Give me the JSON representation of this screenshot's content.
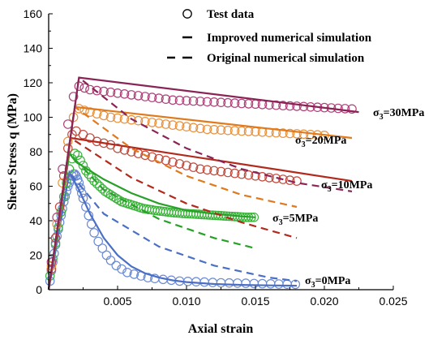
{
  "chart_data": {
    "type": "line",
    "xlabel": "Axial strain",
    "ylabel": "Sheer Stress q (MPa)",
    "xlim": [
      0,
      0.025
    ],
    "ylim": [
      0,
      160
    ],
    "x_ticks": [
      "0.005",
      "0.010",
      "0.015",
      "0.020",
      "0.025"
    ],
    "y_ticks": [
      "0",
      "20",
      "40",
      "60",
      "80",
      "100",
      "120",
      "140",
      "160"
    ],
    "grid": false,
    "legend_position": "top-right",
    "legend": [
      {
        "label": "Test data",
        "kind": "marker"
      },
      {
        "label": "Improved numerical simulation",
        "kind": "solid"
      },
      {
        "label": "Original numerical simulation",
        "kind": "dashed"
      }
    ],
    "series": [
      {
        "annotation": "σ3=0MPa",
        "color": "#4a6fc4",
        "test_color": "#6b8ad4",
        "test_data": {
          "x": [
            0.0001,
            0.0002,
            0.0003,
            0.0004,
            0.0005,
            0.0006,
            0.0007,
            0.0008,
            0.0009,
            0.001,
            0.0011,
            0.0012,
            0.0013,
            0.0014,
            0.0015,
            0.0016,
            0.0017,
            0.0018,
            0.0019,
            0.002,
            0.0021,
            0.0022,
            0.0023,
            0.0024,
            0.0025,
            0.0027,
            0.0029,
            0.0031,
            0.0033,
            0.0036,
            0.0039,
            0.0042,
            0.0045,
            0.0049,
            0.0053,
            0.0057,
            0.0062,
            0.0067,
            0.0072,
            0.0077,
            0.0083,
            0.0089,
            0.0095,
            0.0101,
            0.0107,
            0.0113,
            0.0119,
            0.0125,
            0.0131,
            0.0137,
            0.0143,
            0.0149,
            0.0155,
            0.0161,
            0.0167,
            0.0173,
            0.0179
          ],
          "y": [
            5,
            11,
            16,
            21,
            26,
            31,
            35,
            39,
            43,
            47,
            51,
            54,
            57,
            60,
            62,
            64,
            66,
            67,
            67,
            66,
            64,
            62,
            59,
            56,
            53,
            48,
            43,
            38,
            33,
            28,
            24,
            20,
            17,
            14,
            12,
            10,
            9,
            8,
            7,
            6.5,
            6,
            5.5,
            5,
            4.8,
            4.6,
            4.4,
            4.2,
            4,
            3.9,
            3.8,
            3.7,
            3.6,
            3.5,
            3.4,
            3.3,
            3.2,
            3.1
          ]
        },
        "improved": {
          "x": [
            0,
            0.0015,
            0.0022,
            0.003,
            0.004,
            0.005,
            0.006,
            0.007,
            0.008,
            0.009,
            0.01,
            0.012,
            0.014,
            0.016,
            0.018
          ],
          "y": [
            0,
            68,
            58,
            44,
            30,
            20,
            13.5,
            9.5,
            7,
            5.4,
            4.4,
            3.3,
            2.8,
            2.5,
            2.3
          ]
        },
        "original": {
          "x": [
            0,
            0.0015,
            0.004,
            0.008,
            0.012,
            0.016,
            0.018
          ],
          "y": [
            0,
            68,
            44,
            25,
            14,
            7,
            5
          ]
        }
      },
      {
        "annotation": "σ3=5MPa",
        "color": "#27a127",
        "test_color": "#3cb43c",
        "test_data": {
          "x": [
            0.0001,
            0.0003,
            0.0005,
            0.0007,
            0.0009,
            0.0011,
            0.0013,
            0.0015,
            0.0017,
            0.0019,
            0.0021,
            0.0023,
            0.0025,
            0.0027,
            0.0029,
            0.0031,
            0.0033,
            0.0035,
            0.0037,
            0.0039,
            0.0041,
            0.0043,
            0.0045,
            0.0047,
            0.0049,
            0.0051,
            0.0053,
            0.0055,
            0.0057,
            0.0059,
            0.0061,
            0.0063,
            0.0065,
            0.0067,
            0.0069,
            0.0071,
            0.0073,
            0.0075,
            0.0077,
            0.0079,
            0.0081,
            0.0083,
            0.0085,
            0.0087,
            0.0089,
            0.0091,
            0.0093,
            0.0095,
            0.0097,
            0.0099,
            0.0101,
            0.0103,
            0.0105,
            0.0107,
            0.0109,
            0.0111,
            0.0113,
            0.0115,
            0.0117,
            0.0119,
            0.0121,
            0.0123,
            0.0125,
            0.0127,
            0.0129,
            0.0131,
            0.0133,
            0.0135,
            0.0137,
            0.0139,
            0.0141,
            0.0143,
            0.0145,
            0.0147,
            0.0149
          ],
          "y": [
            8,
            18,
            27,
            36,
            45,
            54,
            62,
            70,
            76,
            79,
            78,
            75,
            72,
            69,
            67,
            65,
            63,
            61.5,
            60,
            58.5,
            57,
            56,
            55,
            54,
            53,
            52,
            51,
            50.5,
            50,
            49.5,
            49,
            48.5,
            48,
            47.5,
            47,
            46.8,
            46.5,
            46.3,
            46,
            45.8,
            45.6,
            45.4,
            45.2,
            45,
            44.8,
            44.6,
            44.5,
            44.4,
            44.3,
            44.2,
            44.1,
            44,
            43.9,
            43.8,
            43.7,
            43.6,
            43.5,
            43.4,
            43.3,
            43.2,
            43.1,
            43,
            42.9,
            42.8,
            42.7,
            42.6,
            42.5,
            42.4,
            42.3,
            42.2,
            42.1,
            42,
            42,
            42,
            42
          ]
        },
        "improved": {
          "x": [
            0,
            0.0015,
            0.002,
            0.004,
            0.006,
            0.008,
            0.01,
            0.012,
            0.014,
            0.015
          ],
          "y": [
            0,
            79,
            74,
            64,
            56,
            50,
            46,
            44,
            42.5,
            42
          ]
        },
        "original": {
          "x": [
            0,
            0.0015,
            0.004,
            0.008,
            0.012,
            0.015
          ],
          "y": [
            0,
            79,
            58,
            41,
            30,
            24
          ]
        }
      },
      {
        "annotation": "σ3=10MPa",
        "color": "#b22a1c",
        "test_color": "#c04a3c",
        "test_data": {
          "x": [
            0.0002,
            0.0005,
            0.0008,
            0.0011,
            0.0014,
            0.0017,
            0.002,
            0.0025,
            0.003,
            0.0035,
            0.004,
            0.0045,
            0.005,
            0.0055,
            0.006,
            0.0065,
            0.007,
            0.0075,
            0.008,
            0.0085,
            0.009,
            0.0095,
            0.01,
            0.0105,
            0.011,
            0.0115,
            0.012,
            0.0125,
            0.013,
            0.0135,
            0.014,
            0.0145,
            0.015,
            0.0155,
            0.016,
            0.0165,
            0.017,
            0.0175,
            0.018
          ],
          "y": [
            12,
            30,
            48,
            66,
            82,
            90,
            92,
            90,
            88,
            86,
            85,
            84,
            82,
            81,
            80,
            79,
            78,
            77,
            76,
            75,
            74,
            73,
            72,
            71,
            70,
            69.5,
            69,
            68.5,
            68,
            67.5,
            67,
            66.5,
            66,
            65.5,
            65,
            64.5,
            64,
            63.5,
            63
          ]
        },
        "improved": {
          "x": [
            0,
            0.0016,
            0.022
          ],
          "y": [
            0,
            88,
            63
          ]
        },
        "original": {
          "x": [
            0,
            0.0016,
            0.006,
            0.01,
            0.014,
            0.018
          ],
          "y": [
            0,
            88,
            65,
            50,
            39,
            30
          ]
        }
      },
      {
        "annotation": "σ3=20MPa",
        "color": "#e07a1c",
        "test_color": "#e8923e",
        "test_data": {
          "x": [
            0.0002,
            0.0006,
            0.001,
            0.0014,
            0.0018,
            0.0022,
            0.0026,
            0.003,
            0.0035,
            0.004,
            0.0045,
            0.005,
            0.0055,
            0.006,
            0.0065,
            0.007,
            0.0075,
            0.008,
            0.0085,
            0.009,
            0.0095,
            0.01,
            0.0105,
            0.011,
            0.0115,
            0.012,
            0.0125,
            0.013,
            0.0135,
            0.014,
            0.0145,
            0.015,
            0.0155,
            0.016,
            0.0165,
            0.017,
            0.0175,
            0.018,
            0.0185,
            0.019,
            0.0195,
            0.02
          ],
          "y": [
            14,
            38,
            62,
            86,
            100,
            105,
            104,
            103,
            102,
            101,
            100,
            99.5,
            99,
            98.5,
            98,
            97.5,
            97,
            96.5,
            96,
            95.5,
            95,
            94.5,
            94,
            93.5,
            93,
            92.8,
            92.6,
            92.4,
            92.2,
            92,
            91.8,
            91.6,
            91.4,
            91.2,
            91,
            90.8,
            90.6,
            90.4,
            90.2,
            90,
            89.8,
            89.5
          ]
        },
        "improved": {
          "x": [
            0,
            0.0019,
            0.022
          ],
          "y": [
            0,
            106,
            88
          ]
        },
        "original": {
          "x": [
            0,
            0.0019,
            0.006,
            0.01,
            0.014,
            0.018
          ],
          "y": [
            0,
            106,
            82,
            66,
            55,
            48
          ]
        }
      },
      {
        "annotation": "σ3=30MPa",
        "color": "#8b2456",
        "test_color": "#b0407a",
        "test_data": {
          "x": [
            0.0002,
            0.0006,
            0.001,
            0.0014,
            0.0018,
            0.0022,
            0.0026,
            0.003,
            0.0035,
            0.004,
            0.0045,
            0.005,
            0.0055,
            0.006,
            0.0065,
            0.007,
            0.0075,
            0.008,
            0.0085,
            0.009,
            0.0095,
            0.01,
            0.0105,
            0.011,
            0.0115,
            0.012,
            0.0125,
            0.013,
            0.0135,
            0.014,
            0.0145,
            0.015,
            0.0155,
            0.016,
            0.0165,
            0.017,
            0.0175,
            0.018,
            0.0185,
            0.019,
            0.0195,
            0.02,
            0.0205,
            0.021,
            0.0215,
            0.022
          ],
          "y": [
            16,
            42,
            70,
            96,
            112,
            118,
            117,
            116,
            115.5,
            115,
            114.5,
            114,
            113.5,
            113,
            112.5,
            112,
            111.5,
            111,
            110.5,
            110,
            109.8,
            109.6,
            109.4,
            109.2,
            109,
            108.8,
            108.6,
            108.4,
            108.2,
            108,
            107.8,
            107.6,
            107.4,
            107.2,
            107,
            106.8,
            106.6,
            106.4,
            106.2,
            106,
            105.8,
            105.6,
            105.4,
            105.2,
            105,
            104.8
          ]
        },
        "improved": {
          "x": [
            0,
            0.0022,
            0.0225
          ],
          "y": [
            0,
            123,
            103
          ]
        },
        "original": {
          "x": [
            0,
            0.0022,
            0.006,
            0.01,
            0.014,
            0.018,
            0.022
          ],
          "y": [
            0,
            123,
            99,
            82,
            70,
            62,
            57
          ]
        }
      }
    ]
  }
}
